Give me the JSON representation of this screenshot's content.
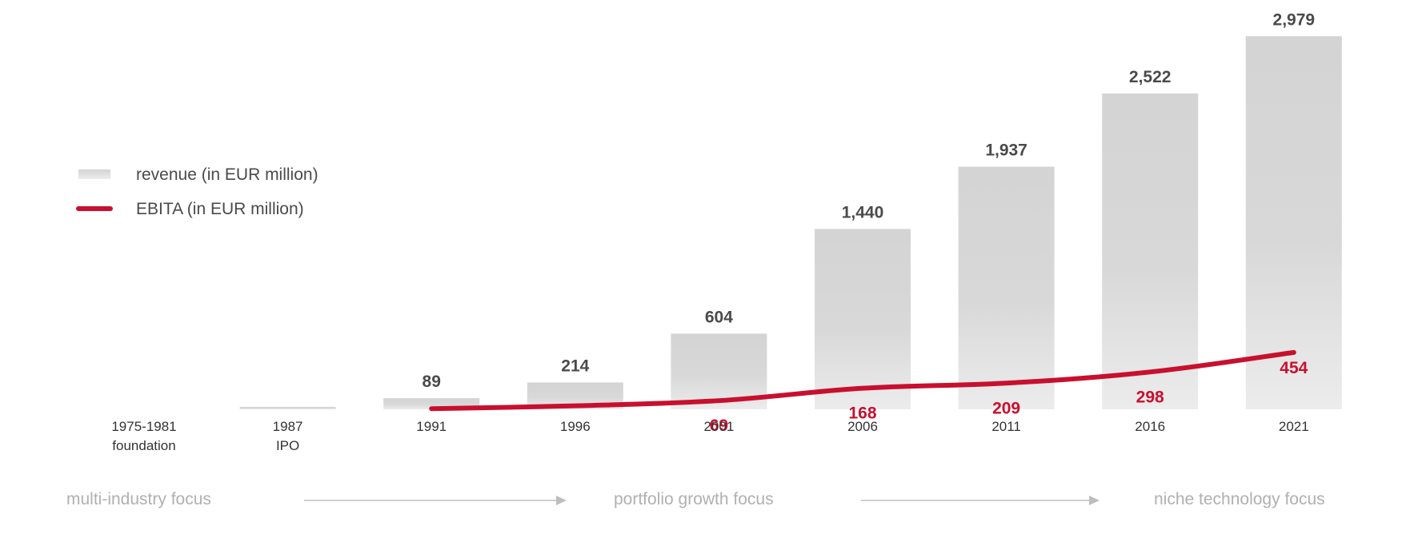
{
  "chart_data": {
    "type": "bar",
    "categories": [
      "1975-1981",
      "1987",
      "1991",
      "1996",
      "2001",
      "2006",
      "2011",
      "2016",
      "2021"
    ],
    "category_sublabels": [
      "foundation",
      "IPO",
      "",
      "",
      "",
      "",
      "",
      "",
      ""
    ],
    "series": [
      {
        "name": "revenue (in EUR million)",
        "type": "bar",
        "values": [
          0,
          20,
          89,
          214,
          604,
          1440,
          1937,
          2522,
          2979
        ],
        "labels": [
          "",
          "",
          "89",
          "214",
          "604",
          "1,440",
          "1,937",
          "2,522",
          "2,979"
        ]
      },
      {
        "name": "EBITA (in EUR million)",
        "type": "line",
        "values": [
          null,
          null,
          5,
          28,
          69,
          168,
          209,
          298,
          454
        ],
        "labels": [
          "",
          "",
          "",
          "",
          "69",
          "168",
          "209",
          "298",
          "454"
        ]
      }
    ],
    "legend": [
      {
        "label": "revenue (in EUR million)",
        "symbol": "bar"
      },
      {
        "label": "EBITA (in EUR million)",
        "symbol": "line"
      }
    ],
    "legend_position": "left",
    "phases": [
      {
        "label": "multi-industry focus"
      },
      {
        "label": "portfolio growth focus"
      },
      {
        "label": "niche technology focus"
      }
    ],
    "ylim": [
      0,
      3000
    ],
    "grid": false
  },
  "colors": {
    "bar_top": "#d4d4d4",
    "bar_bottom": "#ececec",
    "line": "#c8102e",
    "arrow": "#bdbdbd"
  }
}
